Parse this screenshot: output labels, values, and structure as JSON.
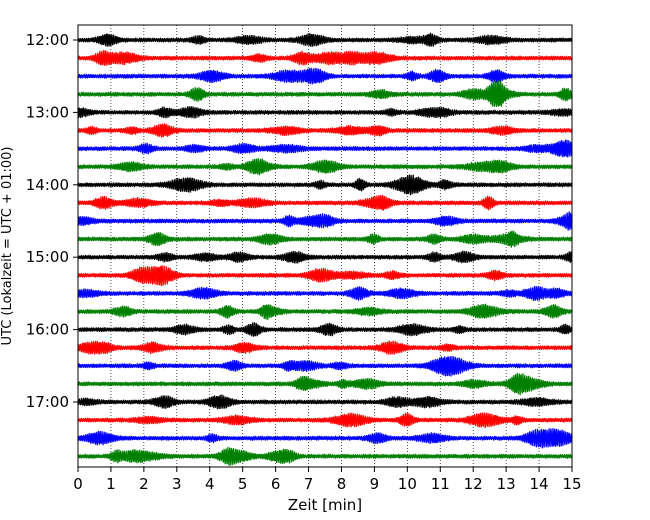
{
  "chart_data": {
    "type": "line",
    "xlabel": "Zeit  [min]",
    "ylabel": "UTC (Lokalzeit = UTC + 01:00)",
    "xlim": [
      0,
      15
    ],
    "x_ticks": [
      "0",
      "1",
      "2",
      "3",
      "4",
      "5",
      "6",
      "7",
      "8",
      "9",
      "10",
      "11",
      "12",
      "13",
      "14",
      "15"
    ],
    "y_ticks": [
      "12:00",
      "13:00",
      "14:00",
      "15:00",
      "16:00",
      "17:00"
    ],
    "grid": "vertical-dotted",
    "trace_interval_min": 15,
    "trace_colors": [
      "#000000",
      "#ff0000",
      "#0000ff",
      "#008000"
    ],
    "traces": [
      {
        "start": "12:00",
        "color": "#000000"
      },
      {
        "start": "12:15",
        "color": "#ff0000"
      },
      {
        "start": "12:30",
        "color": "#0000ff"
      },
      {
        "start": "12:45",
        "color": "#008000"
      },
      {
        "start": "13:00",
        "color": "#000000"
      },
      {
        "start": "13:15",
        "color": "#ff0000"
      },
      {
        "start": "13:30",
        "color": "#0000ff"
      },
      {
        "start": "13:45",
        "color": "#008000"
      },
      {
        "start": "14:00",
        "color": "#000000"
      },
      {
        "start": "14:15",
        "color": "#ff0000"
      },
      {
        "start": "14:30",
        "color": "#0000ff"
      },
      {
        "start": "14:45",
        "color": "#008000"
      },
      {
        "start": "15:00",
        "color": "#000000"
      },
      {
        "start": "15:15",
        "color": "#ff0000"
      },
      {
        "start": "15:30",
        "color": "#0000ff"
      },
      {
        "start": "15:45",
        "color": "#008000"
      },
      {
        "start": "16:00",
        "color": "#000000"
      },
      {
        "start": "16:15",
        "color": "#ff0000"
      },
      {
        "start": "16:30",
        "color": "#0000ff"
      },
      {
        "start": "16:45",
        "color": "#008000"
      },
      {
        "start": "17:00",
        "color": "#000000"
      },
      {
        "start": "17:15",
        "color": "#ff0000"
      },
      {
        "start": "17:30",
        "color": "#0000ff"
      },
      {
        "start": "17:45",
        "color": "#008000"
      }
    ]
  }
}
